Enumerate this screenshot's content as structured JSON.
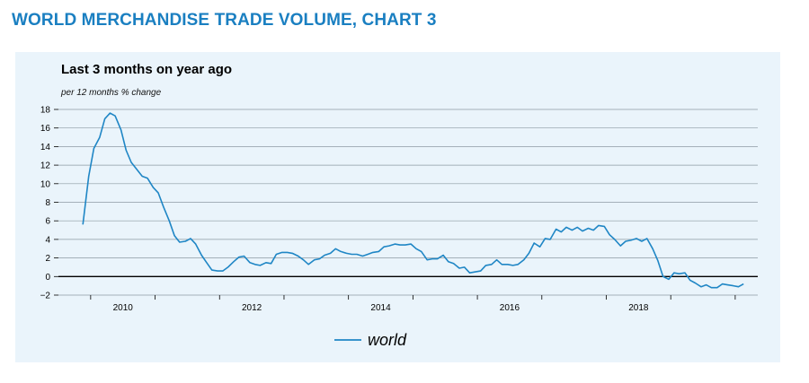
{
  "page_title": "WORLD MERCHANDISE TRADE VOLUME, CHART 3",
  "colors": {
    "title": "#1a7fc1",
    "panel_bg": "#eaf4fb",
    "series": "#1f86c5",
    "grid": "#8c9aa3",
    "zero_line": "#000000"
  },
  "chart_data": {
    "type": "line",
    "title": "Last 3 months on year ago",
    "ylabel": "per 12 months % change",
    "xlabel": "",
    "ylim": [
      -2,
      18
    ],
    "xlim": [
      2009.0,
      2019.85
    ],
    "y_ticks": [
      -2,
      0,
      2,
      4,
      6,
      8,
      10,
      12,
      14,
      16,
      18
    ],
    "y_tick_labels": [
      "−2",
      "0",
      "2",
      "4",
      "6",
      "8",
      "10",
      "12",
      "14",
      "16",
      "18"
    ],
    "x_ticks": [
      2010,
      2012,
      2014,
      2016,
      2018
    ],
    "x_tick_labels": [
      "2010",
      "2012",
      "2014",
      "2016",
      "2018"
    ],
    "grid": true,
    "legend": "bottom-center",
    "series": [
      {
        "name": "world",
        "x": [
          2009.38,
          2009.47,
          2009.55,
          2009.64,
          2009.72,
          2009.8,
          2009.88,
          2009.97,
          2010.05,
          2010.13,
          2010.22,
          2010.3,
          2010.38,
          2010.47,
          2010.55,
          2010.63,
          2010.72,
          2010.8,
          2010.88,
          2010.97,
          2011.05,
          2011.13,
          2011.22,
          2011.3,
          2011.38,
          2011.47,
          2011.55,
          2011.63,
          2011.72,
          2011.8,
          2011.88,
          2011.97,
          2012.05,
          2012.13,
          2012.22,
          2012.3,
          2012.38,
          2012.47,
          2012.55,
          2012.63,
          2012.72,
          2012.8,
          2012.88,
          2012.97,
          2013.05,
          2013.13,
          2013.22,
          2013.3,
          2013.38,
          2013.47,
          2013.55,
          2013.63,
          2013.72,
          2013.8,
          2013.88,
          2013.97,
          2014.05,
          2014.13,
          2014.22,
          2014.3,
          2014.38,
          2014.47,
          2014.55,
          2014.63,
          2014.72,
          2014.8,
          2014.88,
          2014.97,
          2015.05,
          2015.13,
          2015.22,
          2015.3,
          2015.38,
          2015.47,
          2015.55,
          2015.63,
          2015.72,
          2015.8,
          2015.88,
          2015.97,
          2016.05,
          2016.13,
          2016.22,
          2016.3,
          2016.38,
          2016.47,
          2016.55,
          2016.63,
          2016.72,
          2016.8,
          2016.88,
          2016.97,
          2017.05,
          2017.13,
          2017.22,
          2017.3,
          2017.38,
          2017.47,
          2017.55,
          2017.63,
          2017.72,
          2017.8,
          2017.88,
          2017.97,
          2018.05,
          2018.13,
          2018.22,
          2018.3,
          2018.38,
          2018.47,
          2018.55,
          2018.63,
          2018.72,
          2018.8,
          2018.88,
          2018.97,
          2019.05,
          2019.13,
          2019.22,
          2019.3,
          2019.38,
          2019.47,
          2019.55,
          2019.63
        ],
        "y": [
          5.6,
          10.8,
          13.8,
          15.0,
          17.0,
          17.6,
          17.3,
          15.8,
          13.6,
          12.3,
          11.5,
          10.8,
          10.6,
          9.6,
          9.0,
          7.5,
          6.0,
          4.4,
          3.7,
          3.8,
          4.1,
          3.5,
          2.3,
          1.5,
          0.7,
          0.6,
          0.6,
          1.0,
          1.6,
          2.1,
          2.2,
          1.5,
          1.3,
          1.2,
          1.5,
          1.4,
          2.4,
          2.6,
          2.6,
          2.5,
          2.2,
          1.8,
          1.3,
          1.8,
          1.9,
          2.3,
          2.5,
          3.0,
          2.7,
          2.5,
          2.4,
          2.4,
          2.2,
          2.4,
          2.6,
          2.7,
          3.2,
          3.3,
          3.5,
          3.4,
          3.4,
          3.5,
          3.0,
          2.7,
          1.8,
          1.9,
          1.9,
          2.3,
          1.6,
          1.4,
          0.9,
          1.0,
          0.4,
          0.5,
          0.6,
          1.2,
          1.3,
          1.8,
          1.3,
          1.3,
          1.2,
          1.3,
          1.8,
          2.5,
          3.6,
          3.2,
          4.1,
          4.0,
          5.1,
          4.8,
          5.3,
          5.0,
          5.3,
          4.9,
          5.2,
          5.0,
          5.5,
          5.4,
          4.5,
          4.0,
          3.3,
          3.8,
          3.9,
          4.1,
          3.8,
          4.1,
          3.0,
          1.7,
          0.0,
          -0.3,
          0.4,
          0.3,
          0.4,
          -0.4,
          -0.7,
          -1.1,
          -0.9,
          -1.2,
          -1.2,
          -0.8,
          -0.9,
          -1.0,
          -1.1,
          -0.8
        ]
      }
    ]
  }
}
